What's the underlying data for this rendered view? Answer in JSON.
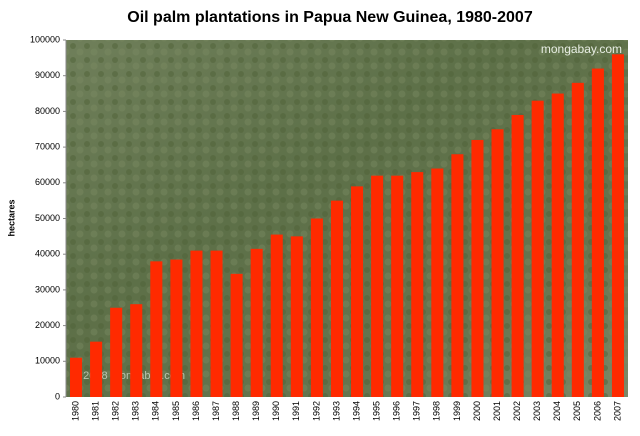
{
  "chart_data": {
    "type": "bar",
    "title": "Oil palm plantations in Papua New Guinea, 1980-2007",
    "y_label": "hectares",
    "watermark": "mongabay.com",
    "copyright": "© 2008 mongabay.com",
    "categories": [
      "1980",
      "1981",
      "1982",
      "1983",
      "1984",
      "1985",
      "1986",
      "1987",
      "1988",
      "1989",
      "1990",
      "1991",
      "1992",
      "1993",
      "1994",
      "1995",
      "1996",
      "1997",
      "1998",
      "1999",
      "2000",
      "2001",
      "2002",
      "2003",
      "2004",
      "2005",
      "2006",
      "2007"
    ],
    "values": [
      11000,
      15500,
      25000,
      26000,
      38000,
      38500,
      41000,
      41000,
      34500,
      41500,
      45500,
      45000,
      50000,
      55000,
      59000,
      62000,
      62000,
      63000,
      64000,
      68000,
      72000,
      75000,
      79000,
      83000,
      85000,
      88000,
      92000,
      96000
    ],
    "color": "#ff2a00",
    "ylim": [
      0,
      100000
    ],
    "yticks": [
      0,
      10000,
      20000,
      30000,
      40000,
      50000,
      60000,
      70000,
      80000,
      90000,
      100000
    ],
    "grid": false
  }
}
